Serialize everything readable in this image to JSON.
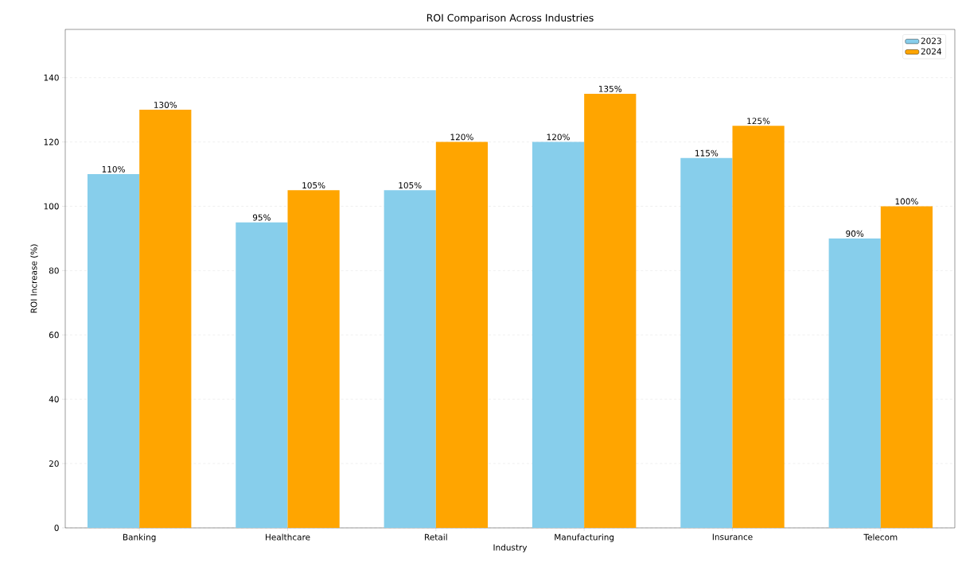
{
  "chart_data": {
    "type": "bar",
    "title": "ROI Comparison Across Industries",
    "xlabel": "Industry",
    "ylabel": "ROI Increase (%)",
    "categories": [
      "Banking",
      "Healthcare",
      "Retail",
      "Manufacturing",
      "Insurance",
      "Telecom"
    ],
    "series": [
      {
        "name": "2023",
        "color": "#87ceeb",
        "values": [
          110,
          95,
          105,
          120,
          115,
          90
        ],
        "value_labels": [
          "110%",
          "95%",
          "105%",
          "120%",
          "115%",
          "90%"
        ]
      },
      {
        "name": "2024",
        "color": "#ffa500",
        "values": [
          130,
          105,
          120,
          135,
          125,
          100
        ],
        "value_labels": [
          "130%",
          "105%",
          "120%",
          "135%",
          "125%",
          "100%"
        ]
      }
    ],
    "ylim": [
      0,
      155
    ],
    "yticks": [
      0,
      20,
      40,
      60,
      80,
      100,
      120,
      140
    ],
    "grid": "y",
    "legend": "top right"
  }
}
